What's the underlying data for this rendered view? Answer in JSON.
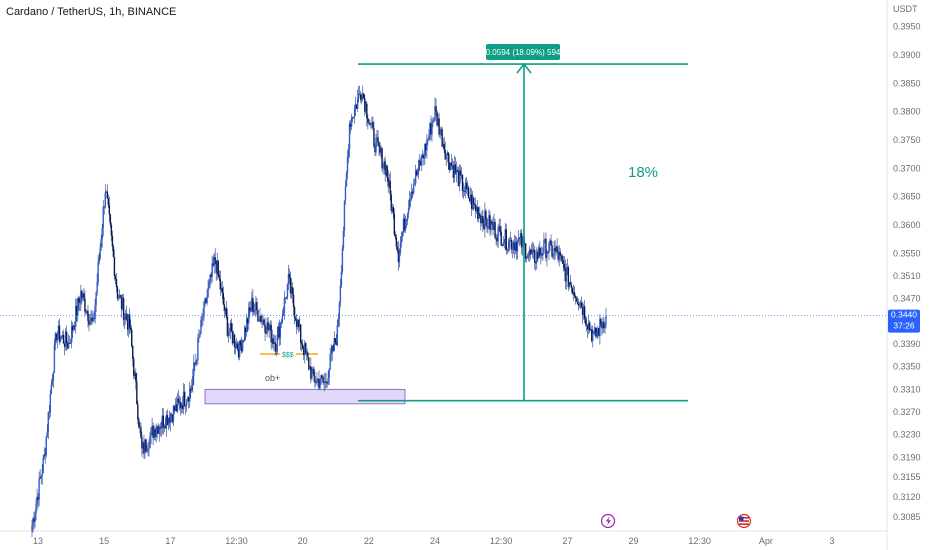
{
  "header": {
    "title": "Cardano / TetherUS, 1h, BINANCE"
  },
  "price_axis": {
    "unit": "USDT",
    "ticks": [
      "0.3950",
      "0.3900",
      "0.3850",
      "0.3800",
      "0.3750",
      "0.3700",
      "0.3650",
      "0.3600",
      "0.3550",
      "0.3510",
      "0.3470",
      "0.3390",
      "0.3350",
      "0.3310",
      "0.3270",
      "0.3230",
      "0.3190",
      "0.3155",
      "0.3120",
      "0.3085"
    ],
    "current_price": "0.3440",
    "countdown": "37:26"
  },
  "time_axis": {
    "ticks": [
      "13",
      "15",
      "17",
      "12:30",
      "20",
      "22",
      "24",
      "12:30",
      "27",
      "29",
      "12:30",
      "Apr",
      "3"
    ]
  },
  "annotations": {
    "measure_badge": "0.0594 (18.09%) 594",
    "percent_label": "18%",
    "order_block_label": "ob+",
    "liquidity_label": "$$$"
  },
  "colors": {
    "candle": "#1e3a8a",
    "measure": "#0e9d85",
    "order_block_fill": "#d7c9f3",
    "order_block_border": "#7e57c2",
    "liquidity_line": "#f5a623",
    "price_tag": "#2962ff"
  },
  "icons": {
    "event_1": "lightning-icon",
    "event_2": "us-flag-icon"
  },
  "chart_data": {
    "type": "line",
    "title": "",
    "xlabel": "",
    "ylabel": "USDT",
    "ylim": [
      0.306,
      0.399
    ],
    "x": [
      "13",
      "13",
      "13",
      "14",
      "14",
      "14",
      "15",
      "15",
      "15",
      "16",
      "16",
      "16",
      "17",
      "17",
      "17",
      "17",
      "18",
      "18",
      "18",
      "19",
      "19",
      "19",
      "20",
      "20",
      "20",
      "21",
      "21",
      "21",
      "22",
      "22",
      "22",
      "23",
      "23",
      "23",
      "24",
      "24",
      "24",
      "25",
      "25",
      "25",
      "26",
      "26",
      "26",
      "27",
      "27",
      "27",
      "28",
      "28"
    ],
    "series": [
      {
        "values": [
          0.307,
          0.319,
          0.341,
          0.339,
          0.348,
          0.342,
          0.3665,
          0.348,
          0.342,
          0.32,
          0.324,
          0.326,
          0.328,
          0.331,
          0.344,
          0.354,
          0.342,
          0.338,
          0.346,
          0.343,
          0.339,
          0.35,
          0.34,
          0.333,
          0.332,
          0.341,
          0.378,
          0.384,
          0.375,
          0.37,
          0.355,
          0.366,
          0.372,
          0.38,
          0.372,
          0.368,
          0.364,
          0.361,
          0.359,
          0.357,
          0.357,
          0.354,
          0.356,
          0.355,
          0.35,
          0.346,
          0.34,
          0.344
        ]
      }
    ],
    "measure": {
      "low": 0.329,
      "high": 0.3884,
      "change": 0.0594,
      "change_pct": 18.09
    },
    "order_block": {
      "low": 0.3295,
      "high": 0.331
    },
    "last_price": 0.344,
    "grid": false
  }
}
